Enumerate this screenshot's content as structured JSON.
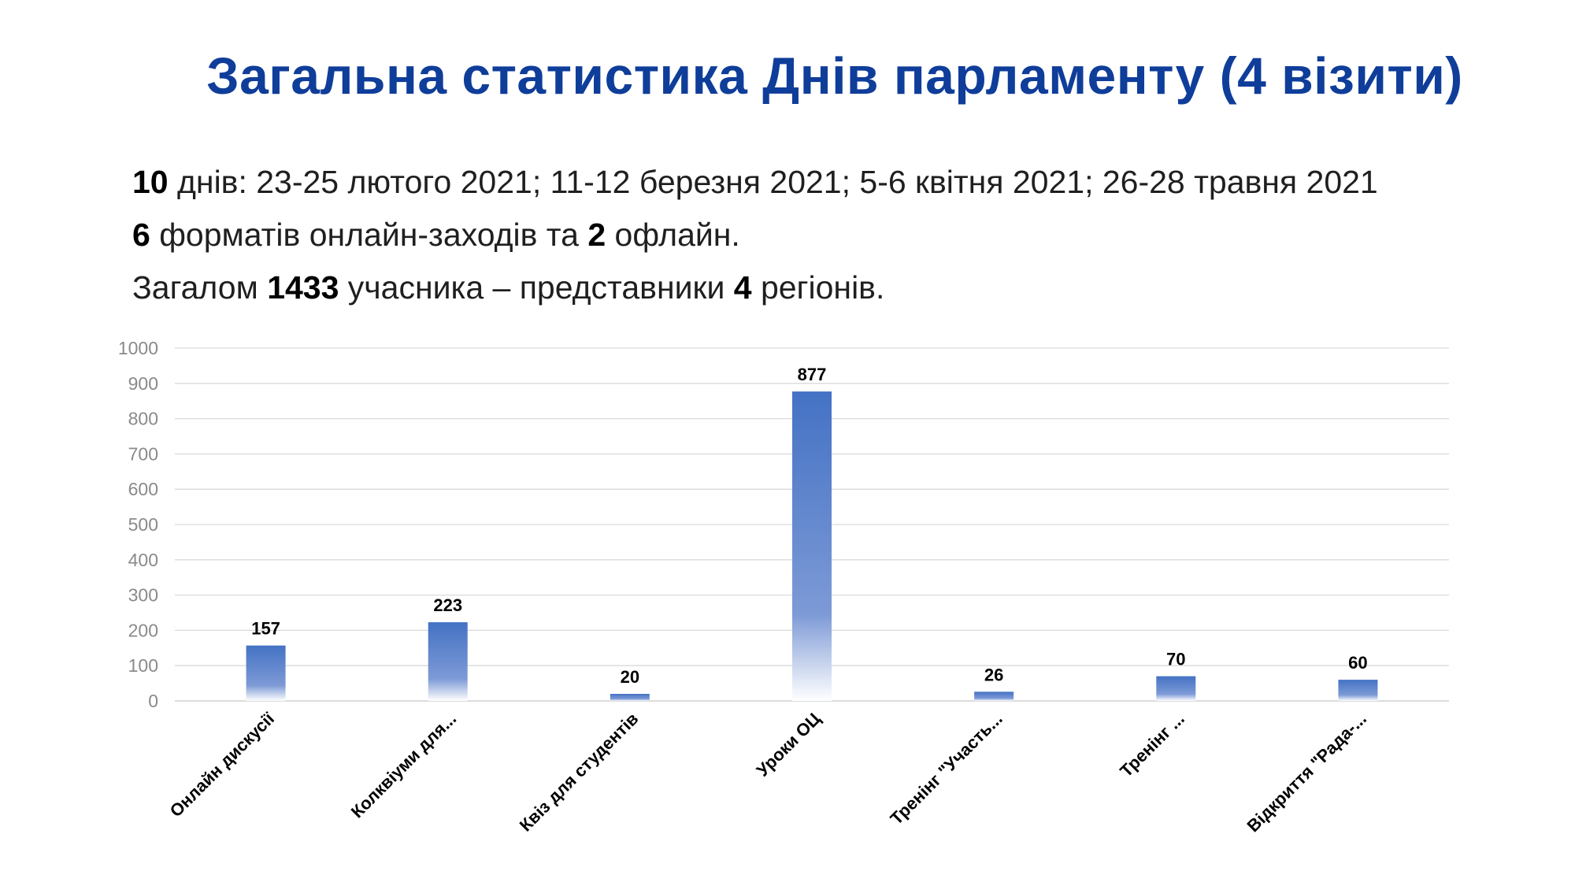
{
  "title": "Загальна статистика Днів парламенту (4 візити)",
  "stats": {
    "line1": {
      "num": "10",
      "text": " днів: 23-25 лютого 2021; 11-12 березня 2021; 5-6 квітня 2021; 26-28 травня 2021"
    },
    "line2": {
      "num1": "6",
      "mid": " форматів онлайн-заходів та  ",
      "num2": "2",
      "end": " офлайн."
    },
    "line3": {
      "pre": "Загалом ",
      "num1": "1433",
      "mid": " учасника – представники ",
      "num2": "4",
      "end": " регіонів."
    }
  },
  "colors": {
    "title": "#0f3d9a",
    "bar_top": "#4472c4",
    "bar_bottom": "#ffffff"
  },
  "chart_data": {
    "type": "bar",
    "categories": [
      "Онлайн дискусії",
      "Колквіуми для...",
      "Квіз для студентів",
      "Уроки ОЦ",
      "Тренінг \"Участь...",
      "Тренінг ...",
      "Відкриття \"Рада-..."
    ],
    "values": [
      157,
      223,
      20,
      877,
      26,
      70,
      60
    ],
    "data_labels": [
      "157",
      "223",
      "20",
      "877",
      "26",
      "70",
      "60"
    ],
    "yticks": [
      0,
      100,
      200,
      300,
      400,
      500,
      600,
      700,
      800,
      900,
      1000
    ],
    "ylim": [
      0,
      1000
    ],
    "title": "",
    "xlabel": "",
    "ylabel": "",
    "grid": true,
    "legend": "none"
  }
}
